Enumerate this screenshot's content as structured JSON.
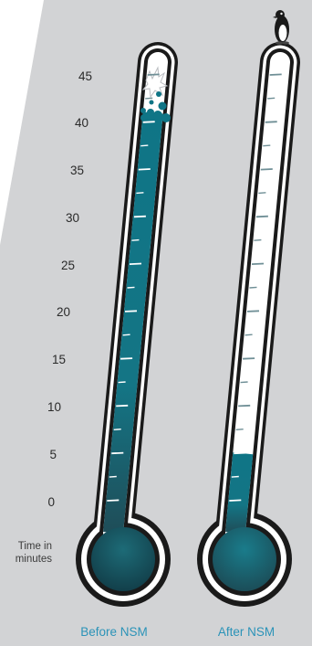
{
  "scale": {
    "label_line1": "Time in",
    "label_line2": "minutes",
    "min": 0,
    "max": 45,
    "ticks": [
      "45",
      "40",
      "35",
      "30",
      "25",
      "20",
      "15",
      "10",
      "5",
      "0"
    ]
  },
  "thermometers": [
    {
      "id": "before",
      "caption": "Before NSM",
      "value": 41,
      "overflow_icons": [
        "burst-icon",
        "bubbles-icon"
      ]
    },
    {
      "id": "after",
      "caption": "After NSM",
      "value": 5,
      "overflow_icons": [
        "penguin-icon"
      ]
    }
  ],
  "colors": {
    "background": "#d2d3d5",
    "liquid_top": "#0f7586",
    "liquid_bottom": "#1f4d58",
    "tube_outline": "#1a1a1a",
    "tube_fill": "#ffffff",
    "caption": "#2b93b8"
  }
}
